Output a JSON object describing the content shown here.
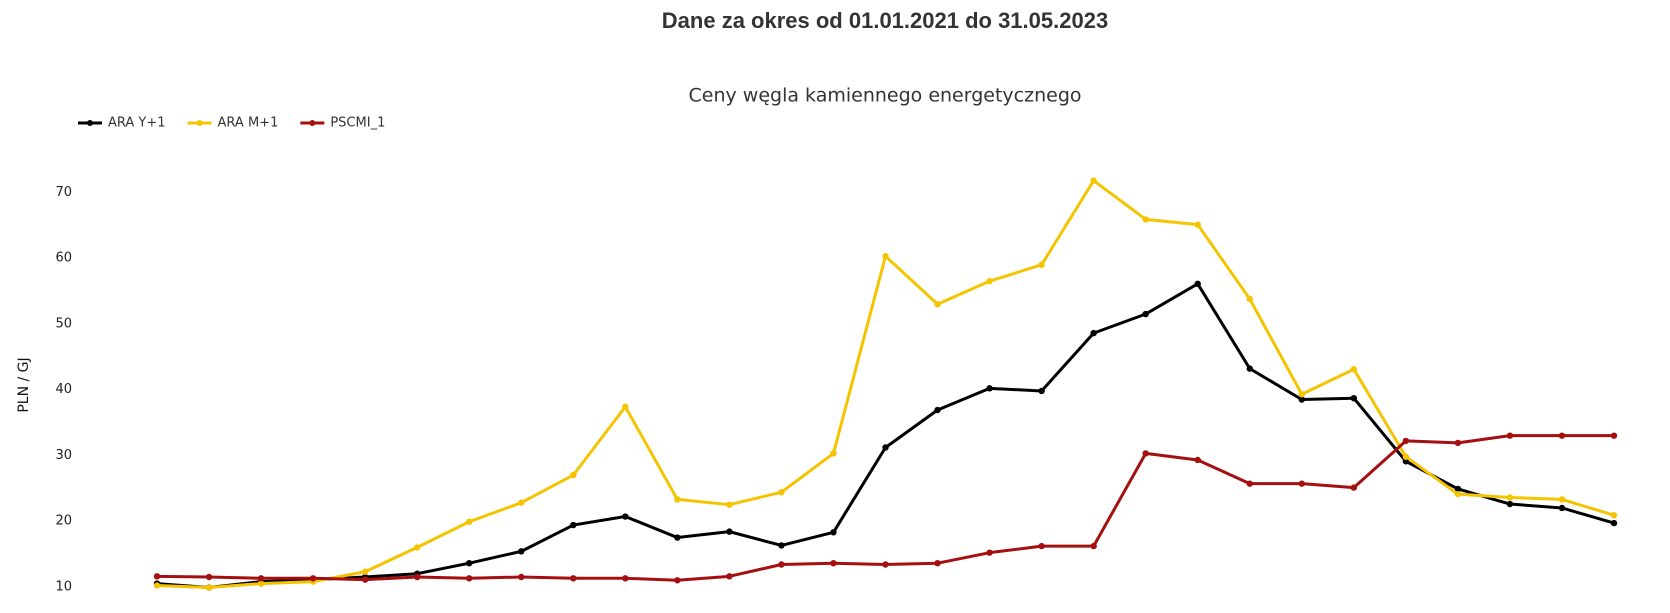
{
  "chart_data": {
    "type": "line",
    "title": "Dane za okres od 01.01.2021 do 31.05.2023",
    "subtitle": "Ceny węgla kamiennego energetycznego",
    "y_label": "PLN / GJ",
    "categories": [
      null,
      null,
      null,
      null,
      null,
      null,
      null,
      null,
      null,
      null,
      null,
      null,
      null,
      null,
      null,
      null,
      null,
      null,
      null,
      null,
      null,
      null,
      null,
      null,
      null,
      null,
      null,
      null,
      null
    ],
    "series": [
      {
        "name": "ARA Y+1",
        "color": "#000000",
        "values": [
          10.5,
          9.9,
          10.8,
          11.1,
          11.5,
          12.0,
          13.6,
          15.4,
          19.4,
          20.7,
          17.5,
          18.4,
          16.3,
          18.3,
          31.2,
          36.9,
          40.2,
          39.8,
          48.6,
          51.5,
          56.1,
          43.2,
          38.5,
          38.7,
          29.1,
          24.9,
          22.6,
          22.0,
          19.7
        ]
      },
      {
        "name": "ARA M+1",
        "color": "#f5c400",
        "values": [
          10.2,
          9.9,
          10.5,
          10.8,
          12.3,
          16.0,
          19.9,
          22.8,
          27.0,
          37.4,
          23.3,
          22.5,
          24.4,
          30.3,
          60.3,
          53.0,
          56.5,
          59.0,
          71.8,
          65.9,
          65.1,
          53.8,
          39.3,
          43.1,
          29.8,
          24.1,
          23.6,
          23.3,
          20.9
        ]
      },
      {
        "name": "PSCMI_1",
        "color": "#a50f0f",
        "values": [
          11.6,
          11.5,
          11.3,
          11.3,
          11.1,
          11.5,
          11.3,
          11.5,
          11.3,
          11.3,
          11.0,
          11.6,
          13.4,
          13.6,
          13.4,
          13.6,
          15.2,
          16.2,
          16.2,
          30.3,
          29.3,
          25.7,
          25.7,
          25.1,
          32.2,
          31.9,
          33.0,
          33.0,
          33.0
        ]
      }
    ],
    "ylim": [
      8,
      76
    ],
    "yticks": [
      10,
      20,
      30,
      40,
      50,
      60,
      70
    ],
    "grid": false
  }
}
